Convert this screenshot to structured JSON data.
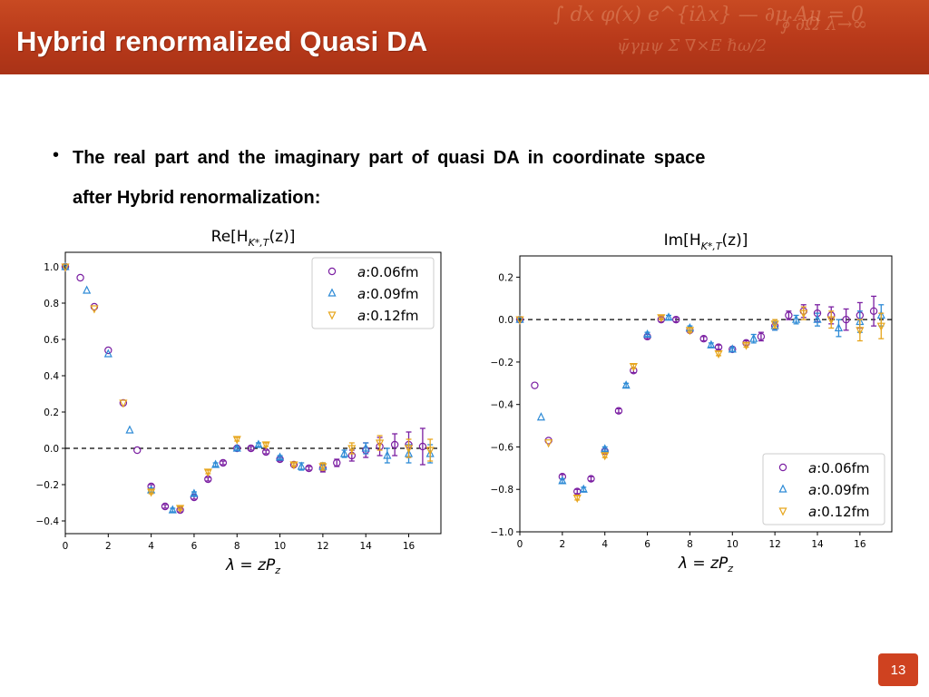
{
  "slide": {
    "title": "Hybrid renormalized Quasi DA",
    "bullet_marker": "•",
    "bullet_line1": "The real part and the imaginary part of quasi DA in coordinate space",
    "bullet_line2": "after Hybrid renormalization:",
    "page_number": "13"
  },
  "colors": {
    "header_bg": "#bf3f1d",
    "series_006": "#7b1fa2",
    "series_009": "#2e8bd6",
    "series_012": "#e7a61e"
  },
  "chart_data": [
    {
      "type": "scatter",
      "title": "Re[H_{K*,T}(z)]",
      "xlabel": "λ = zP_z",
      "xlim": [
        0,
        17.5
      ],
      "ylim": [
        -0.47,
        1.08
      ],
      "xticks": [
        "0",
        "2",
        "4",
        "6",
        "8",
        "10",
        "12",
        "14",
        "16"
      ],
      "yticks": [
        "−0.4",
        "−0.2",
        "0.0",
        "0.2",
        "0.4",
        "0.6",
        "0.8",
        "1.0"
      ],
      "reference_line": 0,
      "legend_position": "top-right",
      "series": [
        {
          "name": "a:0.06fm",
          "marker": "circle",
          "x": [
            0,
            0.7,
            1.35,
            2.0,
            2.7,
            3.35,
            4.0,
            4.65,
            5.35,
            6.0,
            6.65,
            7.35,
            8.0,
            8.65,
            9.35,
            10.0,
            10.65,
            11.35,
            12.0,
            12.65,
            13.35,
            14.0,
            14.65,
            15.35,
            16.0,
            16.65
          ],
          "y": [
            1.0,
            0.94,
            0.78,
            0.54,
            0.25,
            -0.01,
            -0.21,
            -0.32,
            -0.34,
            -0.27,
            -0.17,
            -0.08,
            0.0,
            0.0,
            -0.02,
            -0.06,
            -0.09,
            -0.11,
            -0.11,
            -0.08,
            -0.04,
            -0.01,
            0.01,
            0.02,
            0.02,
            0.01
          ],
          "err": [
            0,
            0,
            0,
            0,
            0,
            0,
            0.01,
            0.01,
            0.01,
            0.01,
            0.01,
            0.01,
            0.01,
            0.01,
            0.01,
            0.01,
            0.01,
            0.01,
            0.02,
            0.02,
            0.03,
            0.04,
            0.05,
            0.06,
            0.07,
            0.1
          ]
        },
        {
          "name": "a:0.09fm",
          "marker": "triangle-up",
          "x": [
            0,
            1.0,
            2.0,
            3.0,
            4.0,
            5.0,
            6.0,
            7.0,
            8.0,
            9.0,
            10.0,
            11.0,
            12.0,
            13.0,
            14.0,
            15.0,
            16.0,
            17.0
          ],
          "y": [
            1.0,
            0.87,
            0.52,
            0.1,
            -0.23,
            -0.34,
            -0.25,
            -0.09,
            0.0,
            0.02,
            -0.05,
            -0.1,
            -0.1,
            -0.03,
            0.0,
            -0.04,
            -0.03,
            -0.03
          ],
          "err": [
            0,
            0,
            0,
            0,
            0.01,
            0.01,
            0.01,
            0.01,
            0.01,
            0.01,
            0.01,
            0.02,
            0.02,
            0.02,
            0.03,
            0.04,
            0.05,
            0.05
          ]
        },
        {
          "name": "a:0.12fm",
          "marker": "triangle-down",
          "x": [
            0,
            1.35,
            2.7,
            4.0,
            5.35,
            6.65,
            8.0,
            9.35,
            10.65,
            12.0,
            13.35,
            14.65,
            16.0,
            17.0
          ],
          "y": [
            1.0,
            0.77,
            0.25,
            -0.24,
            -0.33,
            -0.13,
            0.05,
            0.02,
            -0.09,
            -0.1,
            0.0,
            0.03,
            0.0,
            -0.01
          ],
          "err": [
            0,
            0,
            0,
            0.01,
            0.01,
            0.01,
            0.01,
            0.01,
            0.01,
            0.02,
            0.03,
            0.04,
            0.05,
            0.06
          ]
        }
      ]
    },
    {
      "type": "scatter",
      "title": "Im[H_{K*,T}(z)]",
      "xlabel": "λ = zP_z",
      "xlim": [
        0,
        17.5
      ],
      "ylim": [
        -1.0,
        0.3
      ],
      "xticks": [
        "0",
        "2",
        "4",
        "6",
        "8",
        "10",
        "12",
        "14",
        "16"
      ],
      "yticks": [
        "−1.0",
        "−0.8",
        "−0.6",
        "−0.4",
        "−0.2",
        "0.0",
        "0.2"
      ],
      "reference_line": 0,
      "legend_position": "bottom-right",
      "series": [
        {
          "name": "a:0.06fm",
          "marker": "circle",
          "x": [
            0,
            0.7,
            1.35,
            2.0,
            2.7,
            3.35,
            4.0,
            4.65,
            5.35,
            6.0,
            6.65,
            7.35,
            8.0,
            8.65,
            9.35,
            10.0,
            10.65,
            11.35,
            12.0,
            12.65,
            13.35,
            14.0,
            14.65,
            15.35,
            16.0,
            16.65
          ],
          "y": [
            0.0,
            -0.31,
            -0.57,
            -0.74,
            -0.81,
            -0.75,
            -0.62,
            -0.43,
            -0.24,
            -0.08,
            0.0,
            0.0,
            -0.05,
            -0.09,
            -0.13,
            -0.14,
            -0.11,
            -0.08,
            -0.03,
            0.02,
            0.04,
            0.03,
            0.02,
            0.0,
            0.02,
            0.04
          ],
          "err": [
            0,
            0,
            0,
            0.01,
            0.01,
            0.01,
            0.01,
            0.01,
            0.01,
            0.01,
            0.01,
            0.01,
            0.01,
            0.01,
            0.01,
            0.01,
            0.01,
            0.02,
            0.02,
            0.02,
            0.03,
            0.04,
            0.04,
            0.05,
            0.06,
            0.07
          ]
        },
        {
          "name": "a:0.09fm",
          "marker": "triangle-up",
          "x": [
            0,
            1.0,
            2.0,
            3.0,
            4.0,
            5.0,
            6.0,
            7.0,
            8.0,
            9.0,
            10.0,
            11.0,
            12.0,
            13.0,
            14.0,
            15.0,
            16.0,
            17.0
          ],
          "y": [
            0.0,
            -0.46,
            -0.76,
            -0.8,
            -0.61,
            -0.31,
            -0.07,
            0.01,
            -0.04,
            -0.12,
            -0.14,
            -0.09,
            -0.03,
            0.0,
            0.0,
            -0.04,
            -0.01,
            0.02
          ],
          "err": [
            0,
            0,
            0.01,
            0.01,
            0.01,
            0.01,
            0.01,
            0.01,
            0.01,
            0.01,
            0.01,
            0.02,
            0.02,
            0.02,
            0.03,
            0.04,
            0.05,
            0.05
          ]
        },
        {
          "name": "a:0.12fm",
          "marker": "triangle-down",
          "x": [
            0,
            1.35,
            2.7,
            4.0,
            5.35,
            6.65,
            8.0,
            9.35,
            10.65,
            12.0,
            13.35,
            14.65,
            16.0,
            17.0
          ],
          "y": [
            0.0,
            -0.58,
            -0.84,
            -0.64,
            -0.22,
            0.01,
            -0.05,
            -0.16,
            -0.12,
            -0.02,
            0.03,
            0.0,
            -0.05,
            -0.03
          ],
          "err": [
            0,
            0,
            0.01,
            0.01,
            0.01,
            0.01,
            0.01,
            0.01,
            0.01,
            0.02,
            0.03,
            0.04,
            0.05,
            0.06
          ]
        }
      ]
    }
  ]
}
